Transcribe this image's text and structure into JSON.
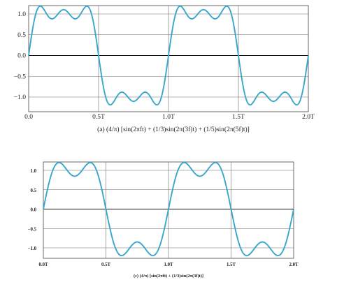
{
  "colors": {
    "curve": "#39a7cd",
    "grid": "#6b6b6b",
    "zero_line": "#111111",
    "frame": "#444444"
  },
  "chart_data": [
    {
      "type": "line",
      "caption": "(a) (4/π) [sin(2πft) + (1/3)sin(2π(3f)t) + (1/5)sin(2π(5f)t)]",
      "title": "",
      "xlabel": "",
      "ylabel": "",
      "harmonics": [
        1,
        3,
        5
      ],
      "x_unit": "T",
      "xlim": [
        0,
        2.0
      ],
      "ylim": [
        -1.2,
        1.2
      ],
      "xticks": [
        0,
        0.5,
        1.0,
        1.5,
        2.0
      ],
      "xtick_labels": [
        "0.0",
        "0.5T",
        "1.0T",
        "1.5T",
        "2.0T"
      ],
      "yticks": [
        1.0,
        0.5,
        0.0,
        -0.5,
        -1.0
      ],
      "ytick_labels": [
        "1.0",
        "0.5",
        "0.0",
        "−0.5",
        "−1.0"
      ],
      "grid": true,
      "series": [
        {
          "x": [
            0,
            0.025,
            0.05,
            0.075,
            0.1,
            0.125,
            0.15,
            0.175,
            0.2,
            0.225,
            0.25,
            0.275,
            0.3,
            0.325,
            0.35,
            0.375,
            0.4,
            0.425,
            0.45,
            0.475,
            0.5,
            0.525,
            0.55,
            0.575,
            0.6,
            0.625,
            0.65,
            0.675,
            0.7,
            0.725,
            0.75,
            0.775,
            0.8,
            0.825,
            0.85,
            0.875,
            0.9,
            0.925,
            0.95,
            0.975,
            1.0
          ],
          "y": [
            0,
            0.58,
            0.98,
            1.15,
            1.12,
            1.02,
            0.96,
            0.99,
            1.05,
            1.07,
            1.07,
            1.07,
            1.05,
            0.99,
            0.96,
            1.02,
            1.12,
            1.15,
            0.98,
            0.58,
            0,
            -0.58,
            -0.98,
            -1.15,
            -1.12,
            -1.02,
            -0.96,
            -0.99,
            -1.05,
            -1.07,
            -1.07,
            -1.07,
            -1.05,
            -0.99,
            -0.96,
            -1.02,
            -1.12,
            -1.15,
            -0.98,
            -0.58,
            0
          ]
        }
      ]
    },
    {
      "type": "line",
      "caption": "(c) (4/π) [sin(2πft) + (1/3)sin(2π(3f)t)]",
      "title": "",
      "xlabel": "",
      "ylabel": "",
      "harmonics": [
        1,
        3
      ],
      "x_unit": "T",
      "xlim": [
        0,
        2.0
      ],
      "ylim": [
        -1.2,
        1.2
      ],
      "xticks": [
        0,
        0.5,
        1.0,
        1.5,
        2.0
      ],
      "xtick_labels": [
        "0.0T",
        "0.5T",
        "1.0T",
        "1.5T",
        "2.0T"
      ],
      "yticks": [
        1.0,
        0.5,
        0.0,
        -0.5,
        -1.0
      ],
      "ytick_labels": [
        "1.0",
        "0.5",
        "0.0",
        "−0.5",
        "−1.0"
      ],
      "grid": true,
      "series": [
        {
          "x": [
            0,
            0.05,
            0.1,
            0.15,
            0.2,
            0.25,
            0.3,
            0.35,
            0.4,
            0.45,
            0.5,
            0.55,
            0.6,
            0.65,
            0.7,
            0.75,
            0.8,
            0.85,
            0.9,
            0.95,
            1.0
          ],
          "y": [
            0,
            0.78,
            1.18,
            1.1,
            0.92,
            0.85,
            0.92,
            1.1,
            1.18,
            0.78,
            0,
            -0.78,
            -1.18,
            -1.1,
            -0.92,
            -0.85,
            -0.92,
            -1.1,
            -1.18,
            -0.78,
            0
          ]
        }
      ]
    }
  ]
}
